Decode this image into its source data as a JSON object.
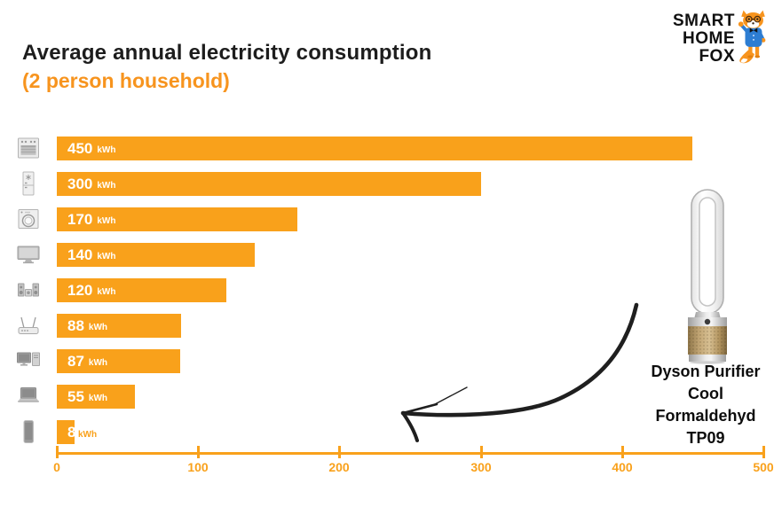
{
  "header": {
    "title": "Average annual electricity consumption",
    "subtitle": "(2 person household)"
  },
  "logo": {
    "lines": [
      "SMART",
      "HOME",
      "FOX"
    ],
    "mascot_icon": "fox-mascot-icon"
  },
  "chart_data": {
    "type": "bar",
    "orientation": "horizontal",
    "title": "Average annual electricity consumption",
    "subtitle": "(2 person household)",
    "unit_label": "kWh",
    "rows": [
      {
        "icon": "oven-icon",
        "value": 450
      },
      {
        "icon": "fridge-freezer-icon",
        "value": 300
      },
      {
        "icon": "washing-machine-icon",
        "value": 170
      },
      {
        "icon": "tv-icon",
        "value": 140
      },
      {
        "icon": "stereo-system-icon",
        "value": 120
      },
      {
        "icon": "wifi-router-icon",
        "value": 88
      },
      {
        "icon": "desktop-computer-icon",
        "value": 87
      },
      {
        "icon": "laptop-icon",
        "value": 55
      },
      {
        "icon": "smartphone-icon",
        "value": 8
      }
    ],
    "x_ticks": [
      "0",
      "100",
      "200",
      "300",
      "400",
      "500"
    ],
    "xlim": [
      0,
      500
    ],
    "grid": false,
    "legend": false
  },
  "annotation": {
    "product_caption_lines": [
      "Dyson Purifier",
      "Cool",
      "Formaldehyd",
      "TP09"
    ]
  },
  "colors": {
    "bar_orange": "#F9A11B",
    "subtitle_orange": "#F7941E",
    "text_dark": "#1D1D1D",
    "arrow_black": "#1F1F1F"
  }
}
